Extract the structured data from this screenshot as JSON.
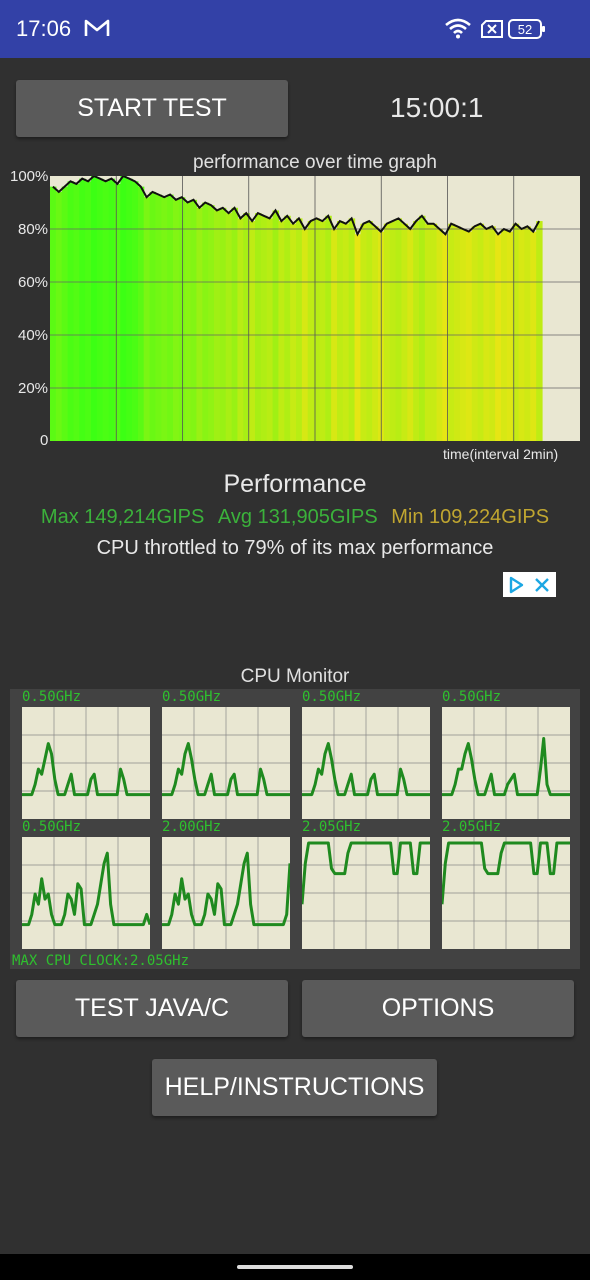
{
  "status_bar": {
    "time": "17:06",
    "mail_icon": "gmail-icon",
    "wifi_icon": "wifi-icon",
    "sim_icon": "no-sim-icon",
    "battery": "52"
  },
  "controls": {
    "start_test_label": "START TEST",
    "timer": "15:00:1"
  },
  "performance_graph": {
    "title": "performance over time graph",
    "y_ticks": [
      "100%",
      "80%",
      "60%",
      "40%",
      "20%",
      "0"
    ],
    "x_note": "time(interval 2min)"
  },
  "chart_data": {
    "type": "line",
    "title": "performance over time graph",
    "xlabel": "time(interval 2min)",
    "ylabel": "",
    "ylim": [
      0,
      100
    ],
    "grid": true,
    "series": [
      {
        "values": [
          96,
          94,
          96,
          98,
          97,
          99,
          98,
          100,
          99,
          98,
          99,
          97,
          100,
          99,
          98,
          96,
          92,
          94,
          93,
          92,
          93,
          91,
          92,
          90,
          91,
          88,
          90,
          89,
          87,
          88,
          86,
          88,
          84,
          86,
          83,
          86,
          85,
          84,
          87,
          83,
          85,
          82,
          84,
          80,
          83,
          84,
          83,
          85,
          80,
          83,
          82,
          84,
          78,
          82,
          83,
          81,
          79,
          82,
          83,
          84,
          82,
          80,
          83,
          85,
          82,
          82,
          80,
          78,
          82,
          81,
          80,
          79,
          81,
          82,
          80,
          81,
          78,
          80,
          79,
          82,
          80,
          81,
          79,
          83
        ]
      }
    ]
  },
  "performance": {
    "title": "Performance",
    "max": "Max 149,214GIPS",
    "avg": "Avg 131,905GIPS",
    "min": "Min 109,224GIPS",
    "throttle": "CPU throttled to 79% of its max performance"
  },
  "cpu_monitor": {
    "title": "CPU Monitor",
    "cores": [
      {
        "freq": "0.50GHz",
        "values": [
          20,
          20,
          20,
          20,
          30,
          45,
          40,
          55,
          70,
          60,
          35,
          20,
          20,
          20,
          30,
          40,
          20,
          20,
          20,
          20,
          20,
          35,
          40,
          20,
          20,
          20,
          20,
          20,
          20,
          20,
          45,
          35,
          20,
          20,
          20,
          20,
          20,
          20,
          20,
          20
        ]
      },
      {
        "freq": "0.50GHz",
        "values": [
          20,
          20,
          20,
          20,
          30,
          45,
          40,
          60,
          70,
          55,
          35,
          20,
          20,
          20,
          30,
          40,
          20,
          20,
          20,
          20,
          20,
          35,
          40,
          20,
          20,
          20,
          20,
          20,
          20,
          20,
          45,
          35,
          20,
          20,
          20,
          20,
          20,
          20,
          20,
          20
        ]
      },
      {
        "freq": "0.50GHz",
        "values": [
          20,
          20,
          20,
          20,
          30,
          45,
          40,
          60,
          70,
          55,
          35,
          20,
          20,
          20,
          30,
          40,
          20,
          20,
          20,
          20,
          20,
          35,
          40,
          20,
          20,
          20,
          20,
          20,
          20,
          20,
          45,
          35,
          20,
          20,
          20,
          20,
          20,
          20,
          20,
          20
        ]
      },
      {
        "freq": "0.50GHz",
        "values": [
          20,
          20,
          20,
          20,
          30,
          45,
          45,
          60,
          70,
          55,
          35,
          20,
          20,
          20,
          30,
          40,
          20,
          20,
          20,
          20,
          30,
          35,
          40,
          20,
          20,
          20,
          20,
          20,
          20,
          20,
          45,
          75,
          30,
          20,
          20,
          20,
          20,
          20,
          20,
          20
        ]
      },
      {
        "freq": "0.50GHz",
        "values": [
          20,
          20,
          20,
          30,
          50,
          40,
          65,
          45,
          50,
          30,
          20,
          20,
          20,
          30,
          50,
          45,
          30,
          60,
          55,
          20,
          20,
          20,
          30,
          40,
          60,
          80,
          90,
          40,
          20,
          20,
          20,
          20,
          20,
          20,
          20,
          20,
          20,
          20,
          30,
          20
        ]
      },
      {
        "freq": "2.00GHz",
        "values": [
          20,
          20,
          20,
          30,
          50,
          40,
          65,
          45,
          50,
          30,
          20,
          20,
          20,
          30,
          50,
          45,
          30,
          60,
          55,
          20,
          20,
          20,
          30,
          40,
          60,
          80,
          90,
          40,
          20,
          20,
          20,
          20,
          20,
          20,
          20,
          20,
          20,
          20,
          30,
          80
        ]
      },
      {
        "freq": "2.05GHz",
        "values": [
          40,
          80,
          100,
          100,
          100,
          100,
          100,
          100,
          100,
          75,
          70,
          70,
          70,
          70,
          90,
          100,
          100,
          100,
          100,
          100,
          100,
          100,
          100,
          100,
          100,
          100,
          100,
          100,
          70,
          70,
          100,
          100,
          100,
          100,
          70,
          70,
          100,
          100,
          100,
          100
        ]
      },
      {
        "freq": "2.05GHz",
        "values": [
          40,
          80,
          100,
          100,
          100,
          100,
          100,
          100,
          100,
          100,
          100,
          100,
          100,
          75,
          70,
          70,
          70,
          70,
          90,
          100,
          100,
          100,
          100,
          100,
          100,
          100,
          100,
          100,
          70,
          70,
          100,
          100,
          100,
          70,
          70,
          100,
          100,
          100,
          100,
          100
        ]
      }
    ],
    "max_clock": "MAX CPU CLOCK:2.05GHz"
  },
  "bottom_buttons": {
    "test_java_c": "TEST JAVA/C",
    "options": "OPTIONS",
    "help": "HELP/INSTRUCTIONS"
  },
  "ad": {
    "adchoices_icon": "adchoices-icon",
    "close_icon": "close-icon"
  }
}
